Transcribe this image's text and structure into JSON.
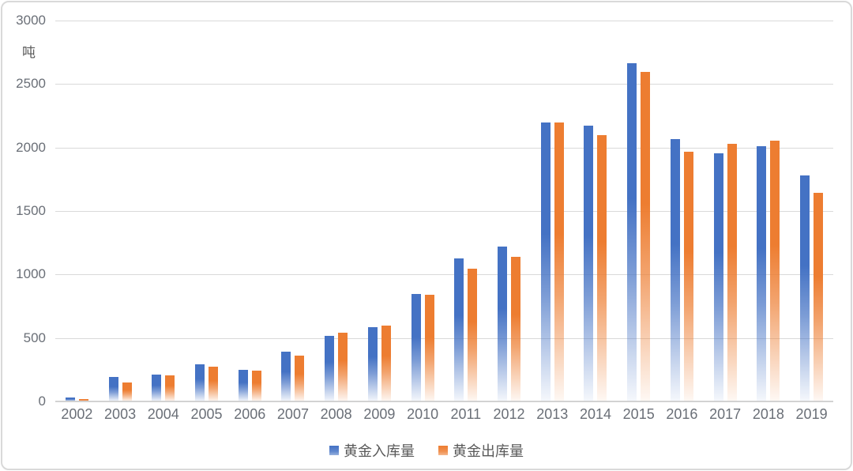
{
  "chart_data": {
    "type": "bar",
    "title": "",
    "unit_label": "吨",
    "categories": [
      "2002",
      "2003",
      "2004",
      "2005",
      "2006",
      "2007",
      "2008",
      "2009",
      "2010",
      "2011",
      "2012",
      "2013",
      "2014",
      "2015",
      "2016",
      "2017",
      "2018",
      "2019"
    ],
    "series": [
      {
        "name": "黄金入库量",
        "color": "#4472C4",
        "values": [
          30,
          195,
          210,
          292,
          250,
          395,
          515,
          585,
          845,
          1125,
          1218,
          2200,
          2170,
          2665,
          2065,
          1955,
          2010,
          1780
        ]
      },
      {
        "name": "黄金出库量",
        "color": "#ED7D31",
        "values": [
          18,
          150,
          205,
          276,
          240,
          358,
          543,
          600,
          838,
          1046,
          1140,
          2197,
          2100,
          2596,
          1970,
          2030,
          2055,
          1642
        ]
      }
    ],
    "ylim": [
      0,
      3000
    ],
    "ytick_step": 500,
    "yticks": [
      0,
      500,
      1000,
      1500,
      2000,
      2500,
      3000
    ],
    "grid": true,
    "legend_position": "bottom"
  },
  "colors": {
    "bar_blue": "#4472C4",
    "bar_orange": "#ED7D31",
    "gridline": "#D9D9D9",
    "axis_line": "#D2D2D2",
    "tick_text": "#6A6F77",
    "legend_text": "#595959",
    "frame_border": "#D9D9D9",
    "background": "#FFFFFF"
  }
}
